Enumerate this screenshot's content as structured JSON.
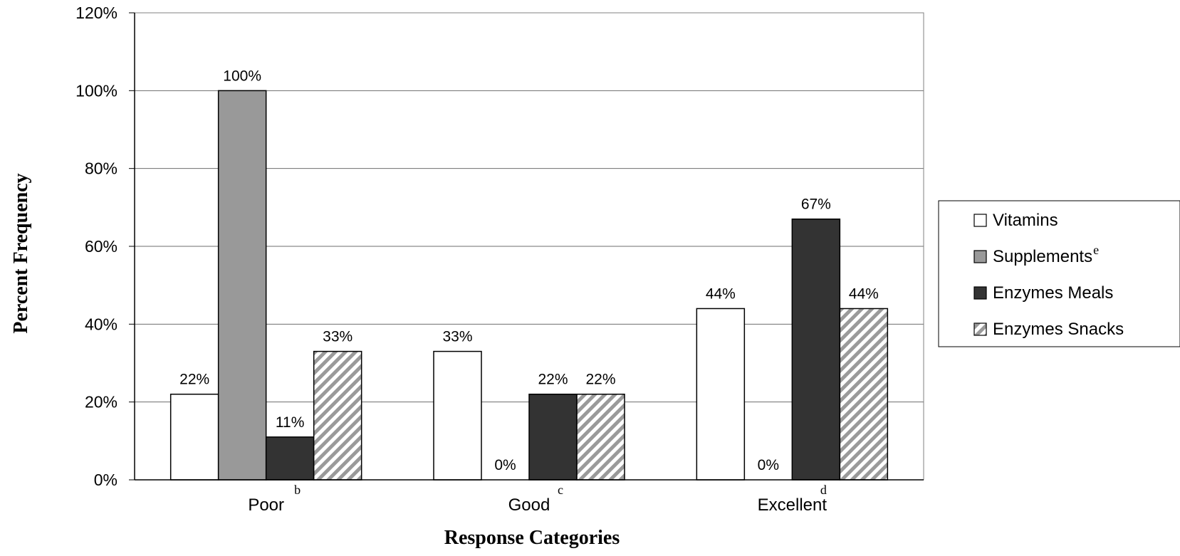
{
  "chart_data": {
    "type": "bar",
    "title": "",
    "xlabel": "Response Categories",
    "ylabel": "Percent Frequency",
    "categories": [
      "Poor",
      "Good",
      "Excellent"
    ],
    "category_superscripts": [
      "b",
      "c",
      "d"
    ],
    "ylim": [
      0,
      120
    ],
    "yticks": [
      0,
      20,
      40,
      60,
      80,
      100,
      120
    ],
    "ytick_labels": [
      "0%",
      "20%",
      "40%",
      "60%",
      "80%",
      "100%",
      "120%"
    ],
    "grid": "horizontal",
    "legend_position": "right",
    "series": [
      {
        "name": "Vitamins",
        "name_superscript": "",
        "values": [
          22,
          33,
          44
        ],
        "labels": [
          "22%",
          "33%",
          "44%"
        ],
        "fill": "#ffffff",
        "pattern": "solid"
      },
      {
        "name": "Supplements",
        "name_superscript": "e",
        "values": [
          100,
          0,
          0
        ],
        "labels": [
          "100%",
          "0%",
          "0%"
        ],
        "fill": "#999999",
        "pattern": "solid"
      },
      {
        "name": "Enzymes Meals",
        "name_superscript": "",
        "values": [
          11,
          22,
          67
        ],
        "labels": [
          "11%",
          "22%",
          "67%"
        ],
        "fill": "#333333",
        "pattern": "solid"
      },
      {
        "name": "Enzymes Snacks",
        "name_superscript": "",
        "values": [
          33,
          22,
          44
        ],
        "labels": [
          "33%",
          "22%",
          "44%"
        ],
        "fill": "#aaaaaa",
        "pattern": "diagonal-stripes"
      }
    ]
  }
}
